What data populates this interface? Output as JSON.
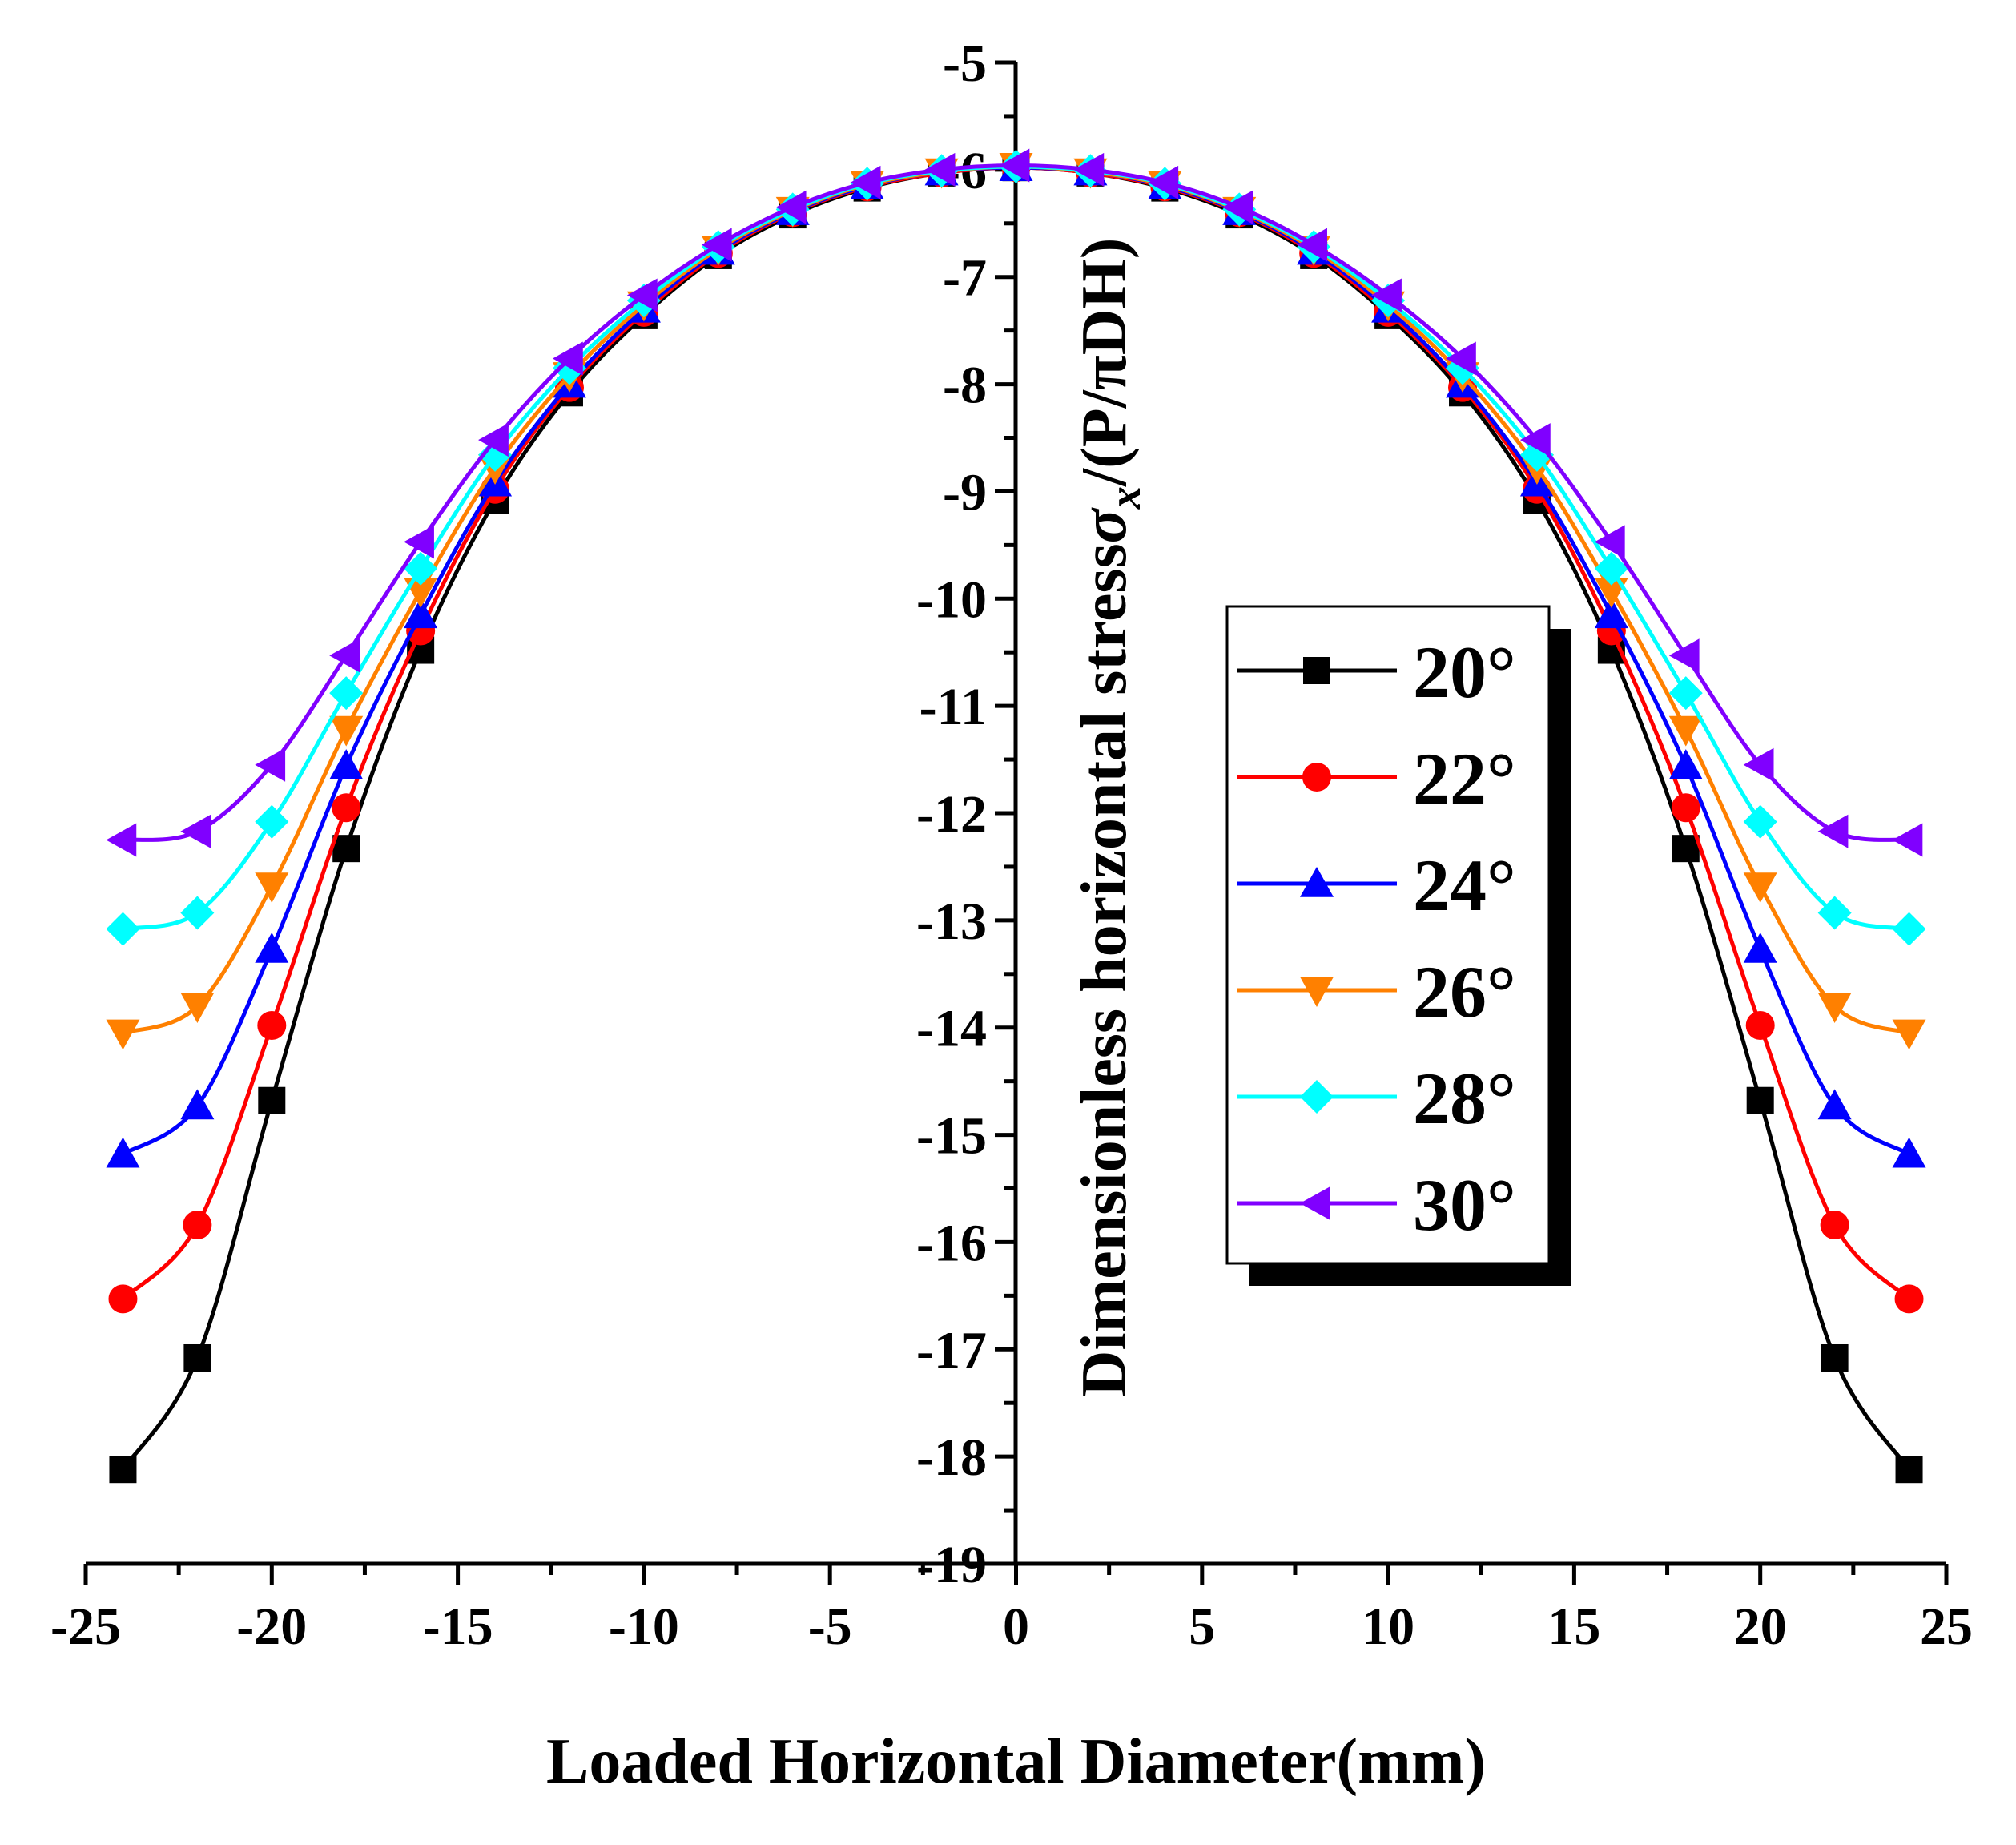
{
  "chart_data": {
    "type": "line",
    "title": "",
    "xlabel": "Loaded Horizontal Diameter(mm)",
    "ylabel": "Dimensionless horizontal stressσx/(P/πDH)",
    "ylabel_prefix": "Dimensionless horizontal stress",
    "ylabel_sigma": "σ",
    "ylabel_sub": "x",
    "ylabel_suffix": "/(P/πDH)",
    "xlim": [
      -25,
      25
    ],
    "ylim": [
      -19,
      -5
    ],
    "x_ticks": [
      "-25",
      "-20",
      "-15",
      "-10",
      "-5",
      "0",
      "5",
      "10",
      "15",
      "20",
      "25"
    ],
    "y_ticks": [
      "-5",
      "-6",
      "-7",
      "-8",
      "-9",
      "-10",
      "-11",
      "-12",
      "-13",
      "-14",
      "-15",
      "-16",
      "-17",
      "-18",
      "-19"
    ],
    "grid": false,
    "legend_position": "center-right",
    "x": [
      -24,
      -22,
      -20,
      -18,
      -16,
      -14,
      -12,
      -10,
      -8,
      -6,
      -4,
      -2,
      0,
      2,
      4,
      6,
      8,
      10,
      12,
      14,
      16,
      18,
      20,
      22,
      24
    ],
    "series": [
      {
        "name": "20°",
        "color": "#000000",
        "marker": "square",
        "values": [
          -18.12,
          -17.08,
          -14.68,
          -12.33,
          -10.48,
          -9.08,
          -8.08,
          -7.36,
          -6.8,
          -6.42,
          -6.17,
          -6.03,
          -5.98,
          -6.03,
          -6.17,
          -6.42,
          -6.8,
          -7.36,
          -8.08,
          -9.08,
          -10.48,
          -12.33,
          -14.68,
          -17.08,
          -18.12
        ]
      },
      {
        "name": "22°",
        "color": "#ff0000",
        "marker": "circle",
        "values": [
          -16.53,
          -15.84,
          -13.98,
          -11.95,
          -10.3,
          -8.98,
          -8.03,
          -7.33,
          -6.78,
          -6.4,
          -6.16,
          -6.03,
          -5.98,
          -6.03,
          -6.16,
          -6.4,
          -6.78,
          -7.33,
          -8.03,
          -8.98,
          -10.3,
          -11.95,
          -13.98,
          -15.84,
          -16.53
        ]
      },
      {
        "name": "24°",
        "color": "#0000ff",
        "marker": "triangle-up",
        "values": [
          -15.18,
          -14.73,
          -13.27,
          -11.56,
          -10.15,
          -8.92,
          -8.0,
          -7.3,
          -6.76,
          -6.39,
          -6.15,
          -6.02,
          -5.98,
          -6.02,
          -6.15,
          -6.39,
          -6.76,
          -7.3,
          -8.0,
          -8.92,
          -10.15,
          -11.56,
          -13.27,
          -14.73,
          -15.18
        ]
      },
      {
        "name": "26°",
        "color": "#ff8000",
        "marker": "triangle-down",
        "values": [
          -14.05,
          -13.8,
          -12.68,
          -11.22,
          -9.93,
          -8.78,
          -7.92,
          -7.26,
          -6.74,
          -6.38,
          -6.14,
          -6.02,
          -5.97,
          -6.02,
          -6.14,
          -6.38,
          -6.74,
          -7.26,
          -7.92,
          -8.78,
          -9.93,
          -11.22,
          -12.68,
          -13.8,
          -14.05
        ]
      },
      {
        "name": "28°",
        "color": "#00ffff",
        "marker": "diamond",
        "values": [
          -13.08,
          -12.93,
          -12.08,
          -10.88,
          -9.72,
          -8.66,
          -7.85,
          -7.22,
          -6.72,
          -6.37,
          -6.13,
          -6.01,
          -5.97,
          -6.01,
          -6.13,
          -6.37,
          -6.72,
          -7.22,
          -7.85,
          -8.66,
          -9.72,
          -10.88,
          -12.08,
          -12.93,
          -13.08
        ]
      },
      {
        "name": "30°",
        "color": "#8000ff",
        "marker": "triangle-left",
        "values": [
          -12.25,
          -12.17,
          -11.55,
          -10.53,
          -9.47,
          -8.52,
          -7.76,
          -7.17,
          -6.7,
          -6.35,
          -6.12,
          -6.0,
          -5.96,
          -6.0,
          -6.12,
          -6.35,
          -6.7,
          -7.17,
          -7.76,
          -8.52,
          -9.47,
          -10.53,
          -11.55,
          -12.17,
          -12.25
        ]
      }
    ]
  }
}
